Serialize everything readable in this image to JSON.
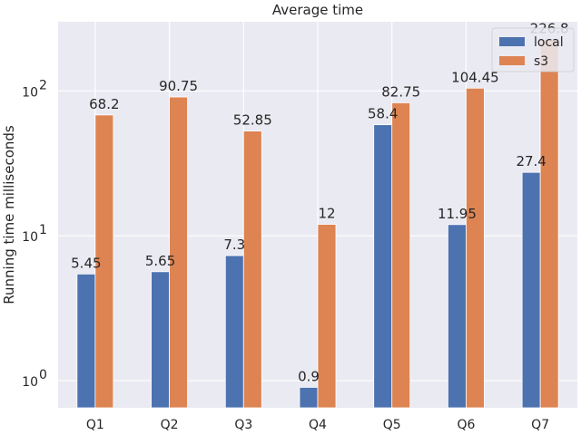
{
  "chart_data": {
    "type": "bar",
    "title": "Average time",
    "xlabel": "",
    "ylabel": "Running time milliseconds",
    "y_scale": "log",
    "ylim": [
      0.65,
      300
    ],
    "grid": true,
    "legend_position": "top-right",
    "categories": [
      "Q1",
      "Q2",
      "Q3",
      "Q4",
      "Q5",
      "Q6",
      "Q7"
    ],
    "series": [
      {
        "name": "local",
        "color": "#4c72b0",
        "values": [
          5.45,
          5.65,
          7.3,
          0.9,
          58.4,
          11.95,
          27.4
        ]
      },
      {
        "name": "s3",
        "color": "#dd8452",
        "values": [
          68.2,
          90.75,
          52.85,
          12,
          82.75,
          104.45,
          226.8
        ]
      }
    ],
    "y_ticks": [
      {
        "value": 1,
        "base": "10",
        "exp": "0"
      },
      {
        "value": 10,
        "base": "10",
        "exp": "1"
      },
      {
        "value": 100,
        "base": "10",
        "exp": "2"
      }
    ],
    "background_color": "#eaeaf2",
    "grid_color": "#ffffff"
  }
}
